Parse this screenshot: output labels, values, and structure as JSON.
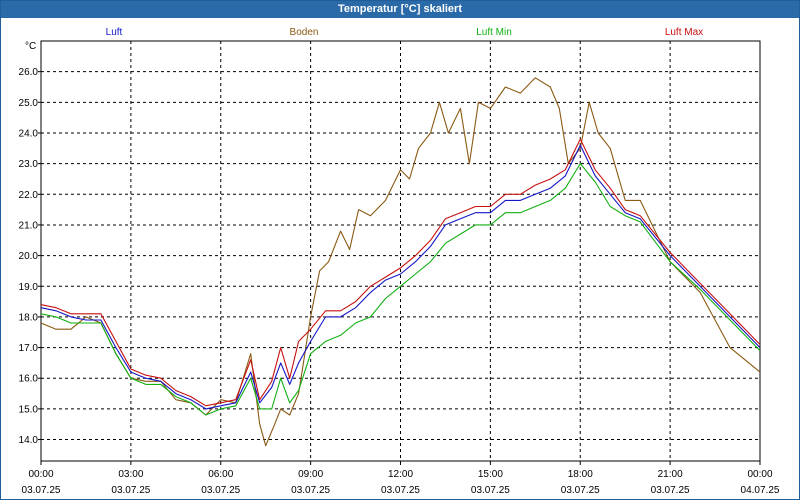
{
  "window_title": "Temperatur [°C] skaliert",
  "chart_data": {
    "type": "line",
    "title": "Temperatur [°C] skaliert",
    "ylabel": "°C",
    "xlabel": "",
    "grid": true,
    "ylim": [
      13.3,
      27.0
    ],
    "xlim": [
      0,
      24
    ],
    "y_ticks": [
      14.0,
      15.0,
      16.0,
      17.0,
      18.0,
      19.0,
      20.0,
      21.0,
      22.0,
      23.0,
      24.0,
      25.0,
      26.0
    ],
    "x_ticks": [
      {
        "time": "00:00",
        "date": "03.07.25"
      },
      {
        "time": "03:00",
        "date": "03.07.25"
      },
      {
        "time": "06:00",
        "date": "03.07.25"
      },
      {
        "time": "09:00",
        "date": "03.07.25"
      },
      {
        "time": "12:00",
        "date": "03.07.25"
      },
      {
        "time": "15:00",
        "date": "03.07.25"
      },
      {
        "time": "18:00",
        "date": "03.07.25"
      },
      {
        "time": "21:00",
        "date": "03.07.25"
      },
      {
        "time": "00:00",
        "date": "04.07.25"
      }
    ],
    "series": [
      {
        "name": "Luft",
        "color": "#1515c8",
        "points": [
          [
            0,
            18.3
          ],
          [
            0.5,
            18.2
          ],
          [
            1,
            18.0
          ],
          [
            1.5,
            17.9
          ],
          [
            2,
            17.9
          ],
          [
            2.5,
            17.0
          ],
          [
            3,
            16.2
          ],
          [
            3.5,
            16.0
          ],
          [
            4,
            15.9
          ],
          [
            4.5,
            15.5
          ],
          [
            5,
            15.3
          ],
          [
            5.5,
            15.0
          ],
          [
            6,
            15.1
          ],
          [
            6.5,
            15.2
          ],
          [
            7,
            16.2
          ],
          [
            7.3,
            15.2
          ],
          [
            7.7,
            15.7
          ],
          [
            8,
            16.5
          ],
          [
            8.3,
            15.8
          ],
          [
            8.6,
            16.5
          ],
          [
            9,
            17.2
          ],
          [
            9.5,
            18.0
          ],
          [
            10,
            18.0
          ],
          [
            10.5,
            18.3
          ],
          [
            11,
            18.8
          ],
          [
            11.5,
            19.2
          ],
          [
            12,
            19.4
          ],
          [
            12.5,
            19.8
          ],
          [
            13,
            20.3
          ],
          [
            13.5,
            21.0
          ],
          [
            14,
            21.2
          ],
          [
            14.5,
            21.4
          ],
          [
            15,
            21.4
          ],
          [
            15.5,
            21.8
          ],
          [
            16,
            21.8
          ],
          [
            16.5,
            22.0
          ],
          [
            17,
            22.2
          ],
          [
            17.5,
            22.6
          ],
          [
            18,
            23.6
          ],
          [
            18.5,
            22.6
          ],
          [
            19,
            22.0
          ],
          [
            19.5,
            21.4
          ],
          [
            20,
            21.2
          ],
          [
            21,
            20.0
          ],
          [
            22,
            19.0
          ],
          [
            23,
            18.0
          ],
          [
            24,
            17.0
          ]
        ]
      },
      {
        "name": "Boden",
        "color": "#8b5a14",
        "points": [
          [
            0,
            17.8
          ],
          [
            0.5,
            17.6
          ],
          [
            1,
            17.6
          ],
          [
            1.5,
            18.0
          ],
          [
            2,
            17.8
          ],
          [
            2.5,
            16.8
          ],
          [
            3,
            16.0
          ],
          [
            3.5,
            15.9
          ],
          [
            4,
            15.9
          ],
          [
            4.5,
            15.3
          ],
          [
            5,
            15.2
          ],
          [
            5.5,
            14.8
          ],
          [
            6,
            15.3
          ],
          [
            6.5,
            15.2
          ],
          [
            7,
            16.8
          ],
          [
            7.3,
            14.5
          ],
          [
            7.5,
            13.8
          ],
          [
            7.8,
            14.5
          ],
          [
            8,
            15.0
          ],
          [
            8.3,
            14.8
          ],
          [
            8.6,
            15.5
          ],
          [
            9,
            18.0
          ],
          [
            9.3,
            19.5
          ],
          [
            9.6,
            19.8
          ],
          [
            10,
            20.8
          ],
          [
            10.3,
            20.2
          ],
          [
            10.6,
            21.5
          ],
          [
            11,
            21.3
          ],
          [
            11.5,
            21.8
          ],
          [
            12,
            22.8
          ],
          [
            12.3,
            22.5
          ],
          [
            12.6,
            23.5
          ],
          [
            13,
            24.0
          ],
          [
            13.3,
            25.0
          ],
          [
            13.6,
            24.0
          ],
          [
            14,
            24.8
          ],
          [
            14.3,
            23.0
          ],
          [
            14.6,
            25.0
          ],
          [
            15,
            24.8
          ],
          [
            15.5,
            25.5
          ],
          [
            16,
            25.3
          ],
          [
            16.5,
            25.8
          ],
          [
            17,
            25.5
          ],
          [
            17.3,
            24.8
          ],
          [
            17.6,
            23.0
          ],
          [
            18,
            23.5
          ],
          [
            18.3,
            25.0
          ],
          [
            18.6,
            24.0
          ],
          [
            19,
            23.5
          ],
          [
            19.5,
            21.8
          ],
          [
            20,
            21.8
          ],
          [
            21,
            19.8
          ],
          [
            22,
            18.8
          ],
          [
            23,
            17.0
          ],
          [
            24,
            16.2
          ]
        ]
      },
      {
        "name": "Luft Min",
        "color": "#12b012",
        "points": [
          [
            0,
            18.1
          ],
          [
            0.5,
            18.0
          ],
          [
            1,
            17.8
          ],
          [
            1.5,
            17.8
          ],
          [
            2,
            17.8
          ],
          [
            2.5,
            16.8
          ],
          [
            3,
            16.0
          ],
          [
            3.5,
            15.8
          ],
          [
            4,
            15.8
          ],
          [
            4.5,
            15.4
          ],
          [
            5,
            15.2
          ],
          [
            5.5,
            14.8
          ],
          [
            6,
            15.0
          ],
          [
            6.5,
            15.1
          ],
          [
            7,
            16.0
          ],
          [
            7.3,
            15.0
          ],
          [
            7.7,
            15.0
          ],
          [
            8,
            16.0
          ],
          [
            8.3,
            15.2
          ],
          [
            8.6,
            15.6
          ],
          [
            9,
            16.8
          ],
          [
            9.5,
            17.2
          ],
          [
            10,
            17.4
          ],
          [
            10.5,
            17.8
          ],
          [
            11,
            18.0
          ],
          [
            11.5,
            18.6
          ],
          [
            12,
            19.0
          ],
          [
            12.5,
            19.4
          ],
          [
            13,
            19.8
          ],
          [
            13.5,
            20.4
          ],
          [
            14,
            20.7
          ],
          [
            14.5,
            21.0
          ],
          [
            15,
            21.0
          ],
          [
            15.5,
            21.4
          ],
          [
            16,
            21.4
          ],
          [
            16.5,
            21.6
          ],
          [
            17,
            21.8
          ],
          [
            17.5,
            22.2
          ],
          [
            18,
            23.0
          ],
          [
            18.5,
            22.4
          ],
          [
            19,
            21.6
          ],
          [
            19.5,
            21.3
          ],
          [
            20,
            21.1
          ],
          [
            21,
            19.8
          ],
          [
            22,
            18.9
          ],
          [
            23,
            17.9
          ],
          [
            24,
            16.9
          ]
        ]
      },
      {
        "name": "Luft Max",
        "color": "#c81010",
        "points": [
          [
            0,
            18.4
          ],
          [
            0.5,
            18.3
          ],
          [
            1,
            18.1
          ],
          [
            1.5,
            18.1
          ],
          [
            2,
            18.1
          ],
          [
            2.5,
            17.2
          ],
          [
            3,
            16.3
          ],
          [
            3.5,
            16.1
          ],
          [
            4,
            16.0
          ],
          [
            4.5,
            15.6
          ],
          [
            5,
            15.4
          ],
          [
            5.5,
            15.1
          ],
          [
            6,
            15.2
          ],
          [
            6.5,
            15.3
          ],
          [
            7,
            16.6
          ],
          [
            7.3,
            15.3
          ],
          [
            7.7,
            15.9
          ],
          [
            8,
            17.0
          ],
          [
            8.3,
            16.0
          ],
          [
            8.6,
            17.2
          ],
          [
            9,
            17.6
          ],
          [
            9.5,
            18.2
          ],
          [
            10,
            18.2
          ],
          [
            10.5,
            18.5
          ],
          [
            11,
            19.0
          ],
          [
            11.5,
            19.3
          ],
          [
            12,
            19.6
          ],
          [
            12.5,
            20.0
          ],
          [
            13,
            20.5
          ],
          [
            13.5,
            21.2
          ],
          [
            14,
            21.4
          ],
          [
            14.5,
            21.6
          ],
          [
            15,
            21.6
          ],
          [
            15.5,
            22.0
          ],
          [
            16,
            22.0
          ],
          [
            16.5,
            22.3
          ],
          [
            17,
            22.5
          ],
          [
            17.5,
            22.8
          ],
          [
            18,
            23.8
          ],
          [
            18.5,
            22.8
          ],
          [
            19,
            22.2
          ],
          [
            19.5,
            21.5
          ],
          [
            20,
            21.3
          ],
          [
            21,
            20.1
          ],
          [
            22,
            19.1
          ],
          [
            23,
            18.1
          ],
          [
            24,
            17.1
          ]
        ]
      }
    ]
  }
}
